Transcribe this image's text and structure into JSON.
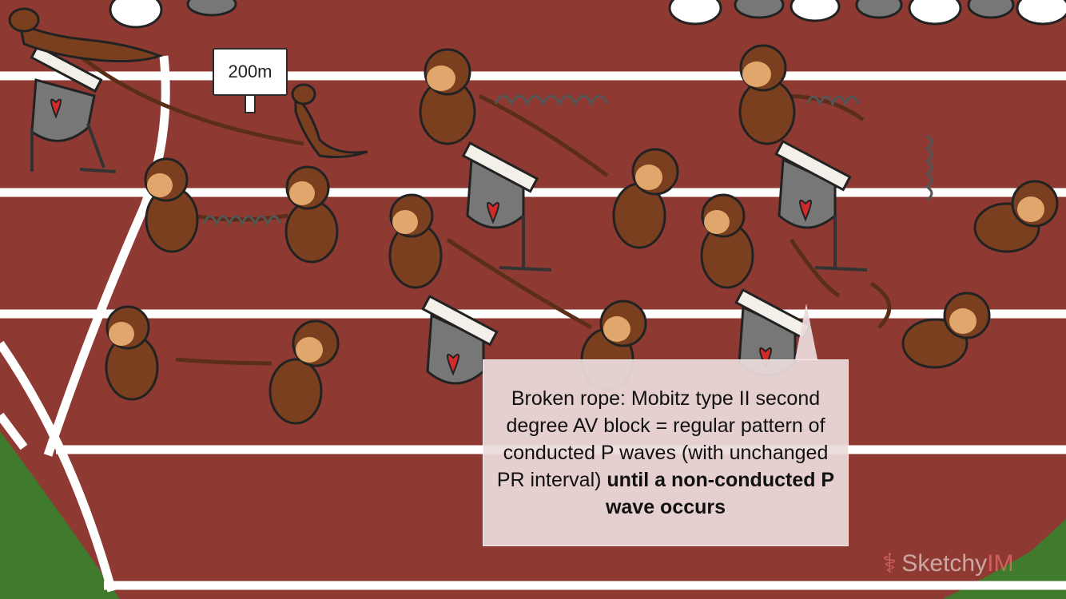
{
  "scene": {
    "distance_sign": "200m",
    "callout": {
      "text_regular": "Broken rope: Mobitz type II second degree AV block = regular pattern of conducted P waves (with unchanged PR interval) ",
      "text_bold": "until a non-conducted P wave occurs"
    },
    "watermark": {
      "name_part1": "Sketchy",
      "name_part2": "IM"
    },
    "colors": {
      "track": "#8e3a33",
      "lane_line": "#ffffff",
      "grass": "#3f7a2d",
      "monkey_fur": "#7a3f1f",
      "monkey_face": "#e0a66b",
      "hurdle_bar": "#f2f0e8",
      "heart": "#d32a2a"
    }
  }
}
